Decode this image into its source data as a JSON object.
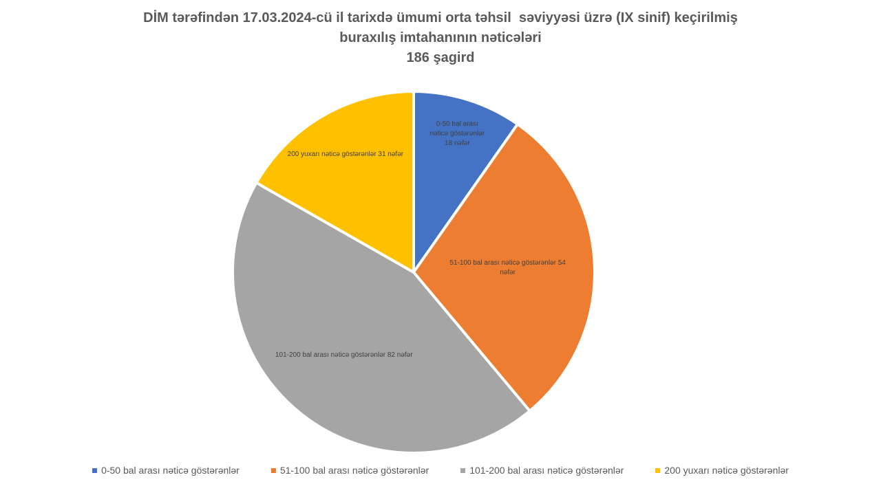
{
  "chart_data": {
    "type": "pie",
    "title": [
      "DİM tərəfindən 17.03.2024-cü il tarixdə ümumi orta təhsil  səviyyəsi üzrə (IX sinif) keçirilmiş",
      "buraxılış imtahanının nəticələri"
    ],
    "subtitle": "186 şagird",
    "categories": [
      "0-50 bal arası nəticə göstərənlər",
      "51-100 bal arası nəticə göstərənlər",
      "101-200 bal arası nəticə göstərənlər",
      "200 yuxarı nəticə göstərənlər"
    ],
    "values": [
      18,
      54,
      82,
      31
    ],
    "value_labels": [
      "18 nəfər",
      "54 nəfər",
      "82 nəfər",
      "31 nəfər"
    ],
    "colors": [
      "#4472c4",
      "#ed7d31",
      "#a5a5a5",
      "#ffc000"
    ],
    "legend": "bottom"
  }
}
